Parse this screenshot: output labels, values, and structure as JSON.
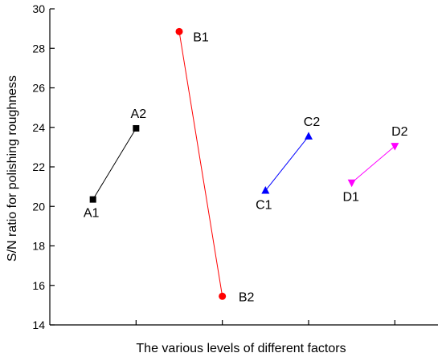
{
  "chart_data": {
    "type": "line",
    "title": "",
    "xlabel": "The various levels of different factors",
    "ylabel": "S/N ratio for polishing roughness",
    "ylim": [
      14,
      30
    ],
    "yticks": [
      14,
      16,
      18,
      20,
      22,
      24,
      26,
      28,
      30
    ],
    "xlim": [
      0,
      9
    ],
    "xticks": [
      2,
      4,
      6,
      8
    ],
    "grid": false,
    "legend": "none",
    "series": [
      {
        "marker": "square",
        "color": "#000000",
        "points": [
          {
            "label": "A1",
            "x": 1,
            "y": 20.35
          },
          {
            "label": "A2",
            "x": 2,
            "y": 23.95
          }
        ]
      },
      {
        "marker": "circle",
        "color": "#ff0000",
        "points": [
          {
            "label": "B1",
            "x": 3,
            "y": 28.85
          },
          {
            "label": "B2",
            "x": 4,
            "y": 15.45
          }
        ]
      },
      {
        "marker": "triangle-up",
        "color": "#0000ff",
        "points": [
          {
            "label": "C1",
            "x": 5,
            "y": 20.8
          },
          {
            "label": "C2",
            "x": 6,
            "y": 23.55
          }
        ]
      },
      {
        "marker": "triangle-down",
        "color": "#ff00ff",
        "points": [
          {
            "label": "D1",
            "x": 7,
            "y": 21.2
          },
          {
            "label": "D2",
            "x": 8,
            "y": 23.05
          }
        ]
      }
    ]
  }
}
